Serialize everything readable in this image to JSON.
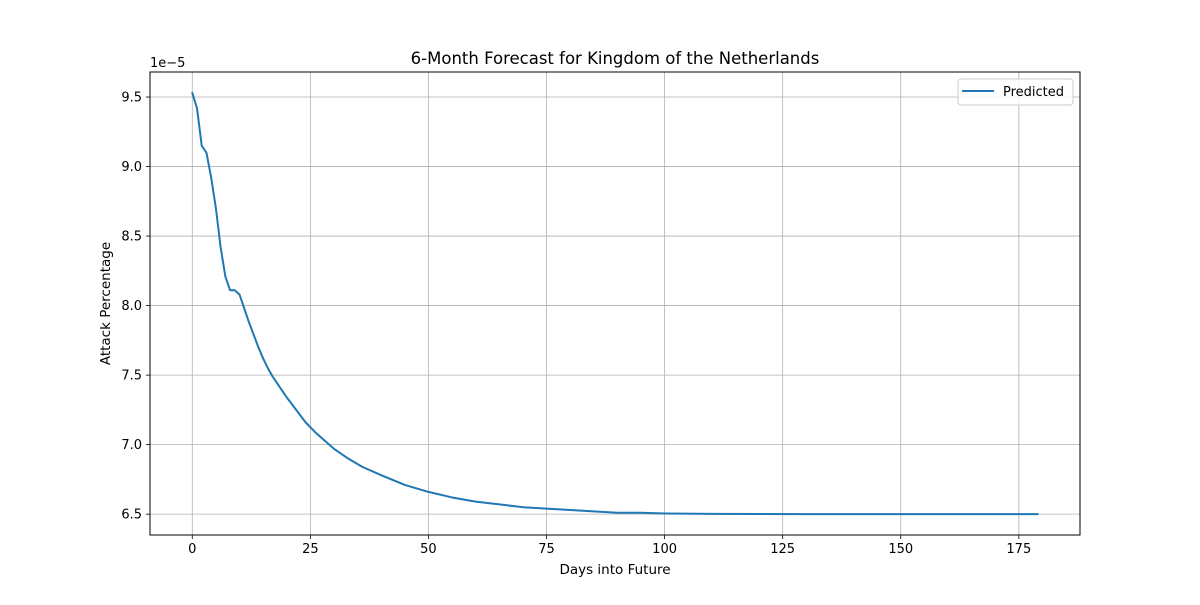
{
  "chart_data": {
    "type": "line",
    "title": "6-Month Forecast for Kingdom of the Netherlands",
    "xlabel": "Days into Future",
    "ylabel": "Attack Percentage",
    "y_offset_label": "1e−5",
    "xlim": [
      -8.95,
      187.95
    ],
    "ylim": [
      6.35,
      9.68
    ],
    "x_ticks": [
      0,
      25,
      50,
      75,
      100,
      125,
      150,
      175
    ],
    "x_tick_labels": [
      "0",
      "25",
      "50",
      "75",
      "100",
      "125",
      "150",
      "175"
    ],
    "y_ticks": [
      6.5,
      7.0,
      7.5,
      8.0,
      8.5,
      9.0,
      9.5
    ],
    "y_tick_labels": [
      "6.5",
      "7.0",
      "7.5",
      "8.0",
      "8.5",
      "9.0",
      "9.5"
    ],
    "grid": true,
    "legend_position": "top-right",
    "line_color": "#1f77b4",
    "series": [
      {
        "name": "Predicted",
        "x": [
          0,
          1,
          2,
          3,
          4,
          5,
          6,
          7,
          8,
          9,
          10,
          11,
          12,
          13,
          14,
          15,
          16,
          17,
          18,
          19,
          20,
          22,
          24,
          26,
          28,
          30,
          33,
          36,
          40,
          45,
          50,
          55,
          60,
          65,
          70,
          75,
          80,
          85,
          90,
          95,
          100,
          110,
          120,
          130,
          140,
          150,
          160,
          170,
          179
        ],
        "y": [
          9.53,
          9.42,
          9.15,
          9.1,
          8.92,
          8.7,
          8.42,
          8.21,
          8.11,
          8.11,
          8.08,
          7.98,
          7.88,
          7.79,
          7.7,
          7.62,
          7.55,
          7.49,
          7.44,
          7.39,
          7.34,
          7.25,
          7.16,
          7.09,
          7.03,
          6.97,
          6.9,
          6.84,
          6.78,
          6.71,
          6.66,
          6.62,
          6.59,
          6.57,
          6.55,
          6.54,
          6.53,
          6.52,
          6.51,
          6.51,
          6.505,
          6.502,
          6.501,
          6.5,
          6.5,
          6.5,
          6.5,
          6.5,
          6.5
        ]
      }
    ]
  }
}
